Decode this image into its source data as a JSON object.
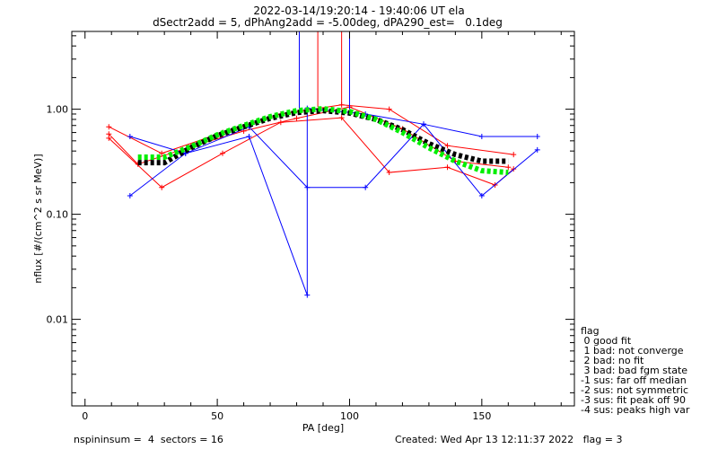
{
  "header": {
    "title_line1": "2022-03-14/19:20:14 - 19:40:06 UT ela",
    "title_line2": "dSectr2add = 5, dPhAng2add = -5.00deg, dPA290_est=   0.1deg"
  },
  "footer": {
    "left": "nspininsum =  4  sectors = 16",
    "right": "Created: Wed Apr 13 12:11:37 2022   flag = 3"
  },
  "legend": {
    "title": "flag",
    "items": [
      " 0 good fit",
      " 1 bad: not converge",
      " 2 bad: no fit",
      " 3 bad: bad fgm state",
      "-1 sus: far off median",
      "-2 sus: not symmetric",
      "-3 sus: fit peak off 90",
      "-4 sus: peaks high var"
    ]
  },
  "colors": {
    "red": "#ff0000",
    "blue": "#0000ff",
    "green": "#00ee00",
    "black": "#000000"
  },
  "chart_data": {
    "type": "scatter",
    "xlabel": "PA [deg]",
    "ylabel": "nflux [#/(cm^2 s sr MeV)]",
    "xlim": [
      -5,
      185
    ],
    "ylim": [
      0.0015,
      5.5
    ],
    "yscale": "log",
    "x_ticks": [
      0,
      50,
      100,
      150
    ],
    "x_tick_labels": [
      "0",
      "50",
      "100",
      "150"
    ],
    "y_ticks": [
      0.01,
      0.1,
      1.0
    ],
    "y_tick_labels": [
      "0.01",
      "0.10",
      "1.00"
    ],
    "series": [
      {
        "color": "red",
        "style": "line+plus",
        "points": [
          [
            9,
            0.68
          ],
          [
            29,
            0.38
          ],
          [
            52,
            0.6
          ],
          [
            74,
            0.9
          ],
          [
            97,
            1.1
          ],
          [
            115,
            1.0
          ],
          [
            137,
            0.45
          ],
          [
            162,
            0.37
          ]
        ]
      },
      {
        "color": "red",
        "style": "line+plus",
        "points": [
          [
            9,
            0.53
          ],
          [
            29,
            0.18
          ],
          [
            52,
            0.38
          ],
          [
            74,
            0.75
          ],
          [
            97,
            0.83
          ],
          [
            115,
            0.25
          ],
          [
            137,
            0.28
          ],
          [
            155,
            0.19
          ],
          [
            162,
            0.27
          ]
        ]
      },
      {
        "color": "red",
        "style": "line+plus",
        "points": [
          [
            9,
            0.58
          ],
          [
            20,
            0.3
          ],
          [
            40,
            0.44
          ],
          [
            60,
            0.62
          ],
          [
            80,
            0.82
          ],
          [
            100,
            1.05
          ],
          [
            120,
            0.65
          ],
          [
            140,
            0.32
          ],
          [
            160,
            0.28
          ]
        ]
      },
      {
        "color": "blue",
        "style": "line+plus",
        "points": [
          [
            17,
            0.55
          ],
          [
            38,
            0.38
          ],
          [
            62,
            0.68
          ],
          [
            84,
            0.18
          ],
          [
            106,
            0.18
          ],
          [
            128,
            0.72
          ],
          [
            150,
            0.15
          ],
          [
            171,
            0.41
          ]
        ]
      },
      {
        "color": "blue",
        "style": "line+plus",
        "points": [
          [
            17,
            0.15
          ],
          [
            38,
            0.38
          ],
          [
            62,
            0.55
          ],
          [
            84,
            0.017
          ],
          [
            84,
            1.02
          ],
          [
            106,
            0.9
          ],
          [
            128,
            0.72
          ],
          [
            150,
            0.55
          ],
          [
            171,
            0.55
          ]
        ]
      },
      {
        "color": "red",
        "style": "vline",
        "points": [
          [
            88,
            1.05
          ],
          [
            88,
            5.5
          ]
        ]
      },
      {
        "color": "red",
        "style": "vline",
        "points": [
          [
            97,
            1.1
          ],
          [
            97,
            5.5
          ]
        ]
      },
      {
        "color": "blue",
        "style": "vline",
        "points": [
          [
            81,
            1.0
          ],
          [
            81,
            5.5
          ]
        ]
      },
      {
        "color": "blue",
        "style": "vline",
        "points": [
          [
            100,
            1.0
          ],
          [
            100,
            5.5
          ]
        ]
      },
      {
        "color": "black",
        "style": "thick-dash",
        "points": [
          [
            20,
            0.31
          ],
          [
            30,
            0.31
          ],
          [
            40,
            0.43
          ],
          [
            50,
            0.56
          ],
          [
            60,
            0.68
          ],
          [
            70,
            0.82
          ],
          [
            80,
            0.93
          ],
          [
            90,
            0.97
          ],
          [
            100,
            0.92
          ],
          [
            110,
            0.8
          ],
          [
            120,
            0.64
          ],
          [
            130,
            0.47
          ],
          [
            140,
            0.37
          ],
          [
            150,
            0.32
          ],
          [
            160,
            0.32
          ]
        ]
      },
      {
        "color": "green",
        "style": "thick-dash",
        "points": [
          [
            20,
            0.35
          ],
          [
            30,
            0.35
          ],
          [
            40,
            0.44
          ],
          [
            50,
            0.57
          ],
          [
            60,
            0.7
          ],
          [
            70,
            0.85
          ],
          [
            80,
            0.97
          ],
          [
            90,
            1.01
          ],
          [
            100,
            0.95
          ],
          [
            110,
            0.8
          ],
          [
            120,
            0.6
          ],
          [
            130,
            0.43
          ],
          [
            140,
            0.32
          ],
          [
            150,
            0.26
          ],
          [
            160,
            0.25
          ]
        ]
      }
    ]
  }
}
